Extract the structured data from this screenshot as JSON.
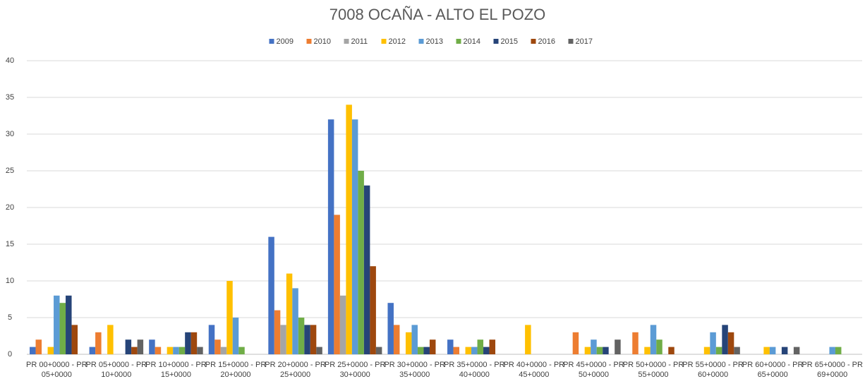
{
  "chart_data": {
    "type": "bar",
    "title": "7008 OCAÑA - ALTO EL POZO",
    "categories": [
      "PR 00+0000 - PR 05+0000",
      "PR 05+0000 - PR 10+0000",
      "PR 10+0000 - PR 15+0000",
      "PR 15+0000 - PR 20+0000",
      "PR 20+0000 - PR 25+0000",
      "PR 25+0000 - PR 30+0000",
      "PR 30+0000 - PR 35+0000",
      "PR 35+0000 - PR 40+0000",
      "PR 40+0000 - PR 45+0000",
      "PR 45+0000 - PR 50+0000",
      "PR 50+0000 - PR 55+0000",
      "PR 55+0000 - PR 60+0000",
      "PR 60+0000 - PR 65+0000",
      "PR 65+0000 - PR 69+0000"
    ],
    "series": [
      {
        "name": "2009",
        "color": "#4472c4",
        "values": [
          1,
          1,
          2,
          4,
          16,
          32,
          7,
          2,
          0,
          0,
          0,
          0,
          0,
          0
        ]
      },
      {
        "name": "2010",
        "color": "#ed7d31",
        "values": [
          2,
          3,
          1,
          2,
          6,
          19,
          4,
          1,
          0,
          3,
          3,
          0,
          0,
          0
        ]
      },
      {
        "name": "2011",
        "color": "#a5a5a5",
        "values": [
          0,
          0,
          0,
          1,
          4,
          8,
          0,
          0,
          0,
          0,
          0,
          0,
          0,
          0
        ]
      },
      {
        "name": "2012",
        "color": "#ffc000",
        "values": [
          1,
          4,
          1,
          10,
          11,
          34,
          3,
          1,
          4,
          1,
          1,
          1,
          1,
          0
        ]
      },
      {
        "name": "2013",
        "color": "#5b9bd5",
        "values": [
          8,
          0,
          1,
          5,
          9,
          32,
          4,
          1,
          0,
          2,
          4,
          3,
          1,
          1
        ]
      },
      {
        "name": "2014",
        "color": "#70ad47",
        "values": [
          7,
          0,
          1,
          1,
          5,
          25,
          1,
          2,
          0,
          1,
          2,
          1,
          0,
          1
        ]
      },
      {
        "name": "2015",
        "color": "#264478",
        "values": [
          8,
          2,
          3,
          0,
          4,
          23,
          1,
          1,
          0,
          1,
          0,
          4,
          1,
          0
        ]
      },
      {
        "name": "2016",
        "color": "#9e480e",
        "values": [
          4,
          1,
          3,
          0,
          4,
          12,
          2,
          2,
          0,
          0,
          1,
          3,
          0,
          0
        ]
      },
      {
        "name": "2017",
        "color": "#636363",
        "values": [
          0,
          2,
          1,
          0,
          1,
          1,
          0,
          0,
          0,
          2,
          0,
          1,
          1,
          0
        ]
      }
    ],
    "ylim": [
      0,
      40
    ],
    "yticks": [
      0,
      5,
      10,
      15,
      20,
      25,
      30,
      35,
      40
    ],
    "grid": true,
    "legend": "top"
  }
}
